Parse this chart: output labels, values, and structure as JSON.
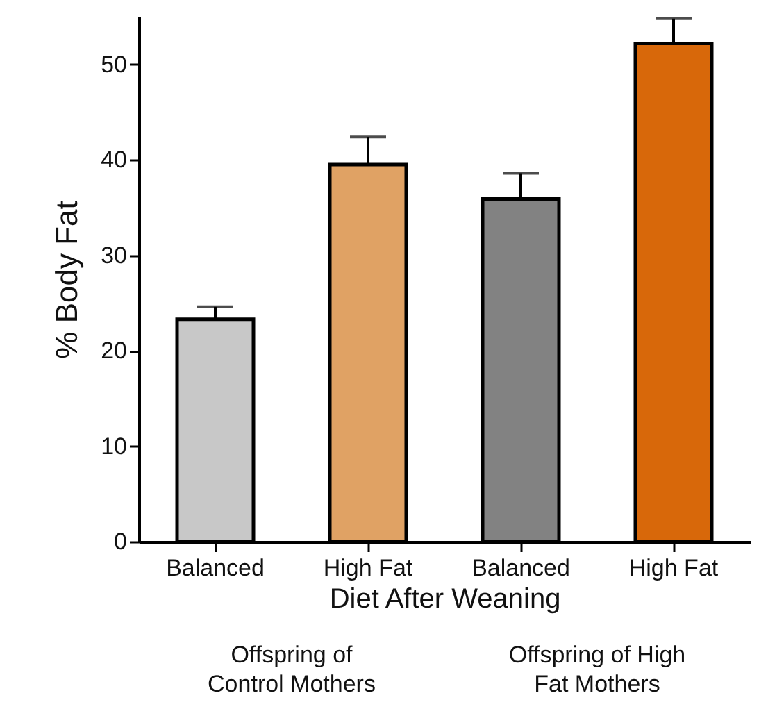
{
  "chart_data": {
    "type": "bar",
    "xlabel": "Diet After Weaning",
    "ylabel": "% Body Fat",
    "categories": [
      "Balanced",
      "High Fat",
      "Balanced",
      "High Fat"
    ],
    "values": [
      23.3,
      39.5,
      35.9,
      52.2
    ],
    "errors": [
      1.3,
      2.9,
      2.7,
      2.6
    ],
    "colors": [
      "#c8c8c8",
      "#e0a264",
      "#828282",
      "#d8680a"
    ],
    "ylim": [
      0,
      55
    ],
    "yticks": [
      0,
      10,
      20,
      30,
      40,
      50
    ],
    "grid": false,
    "annotations": [
      "Offspring of Control Mothers",
      "Offspring of High Fat Mothers"
    ]
  }
}
